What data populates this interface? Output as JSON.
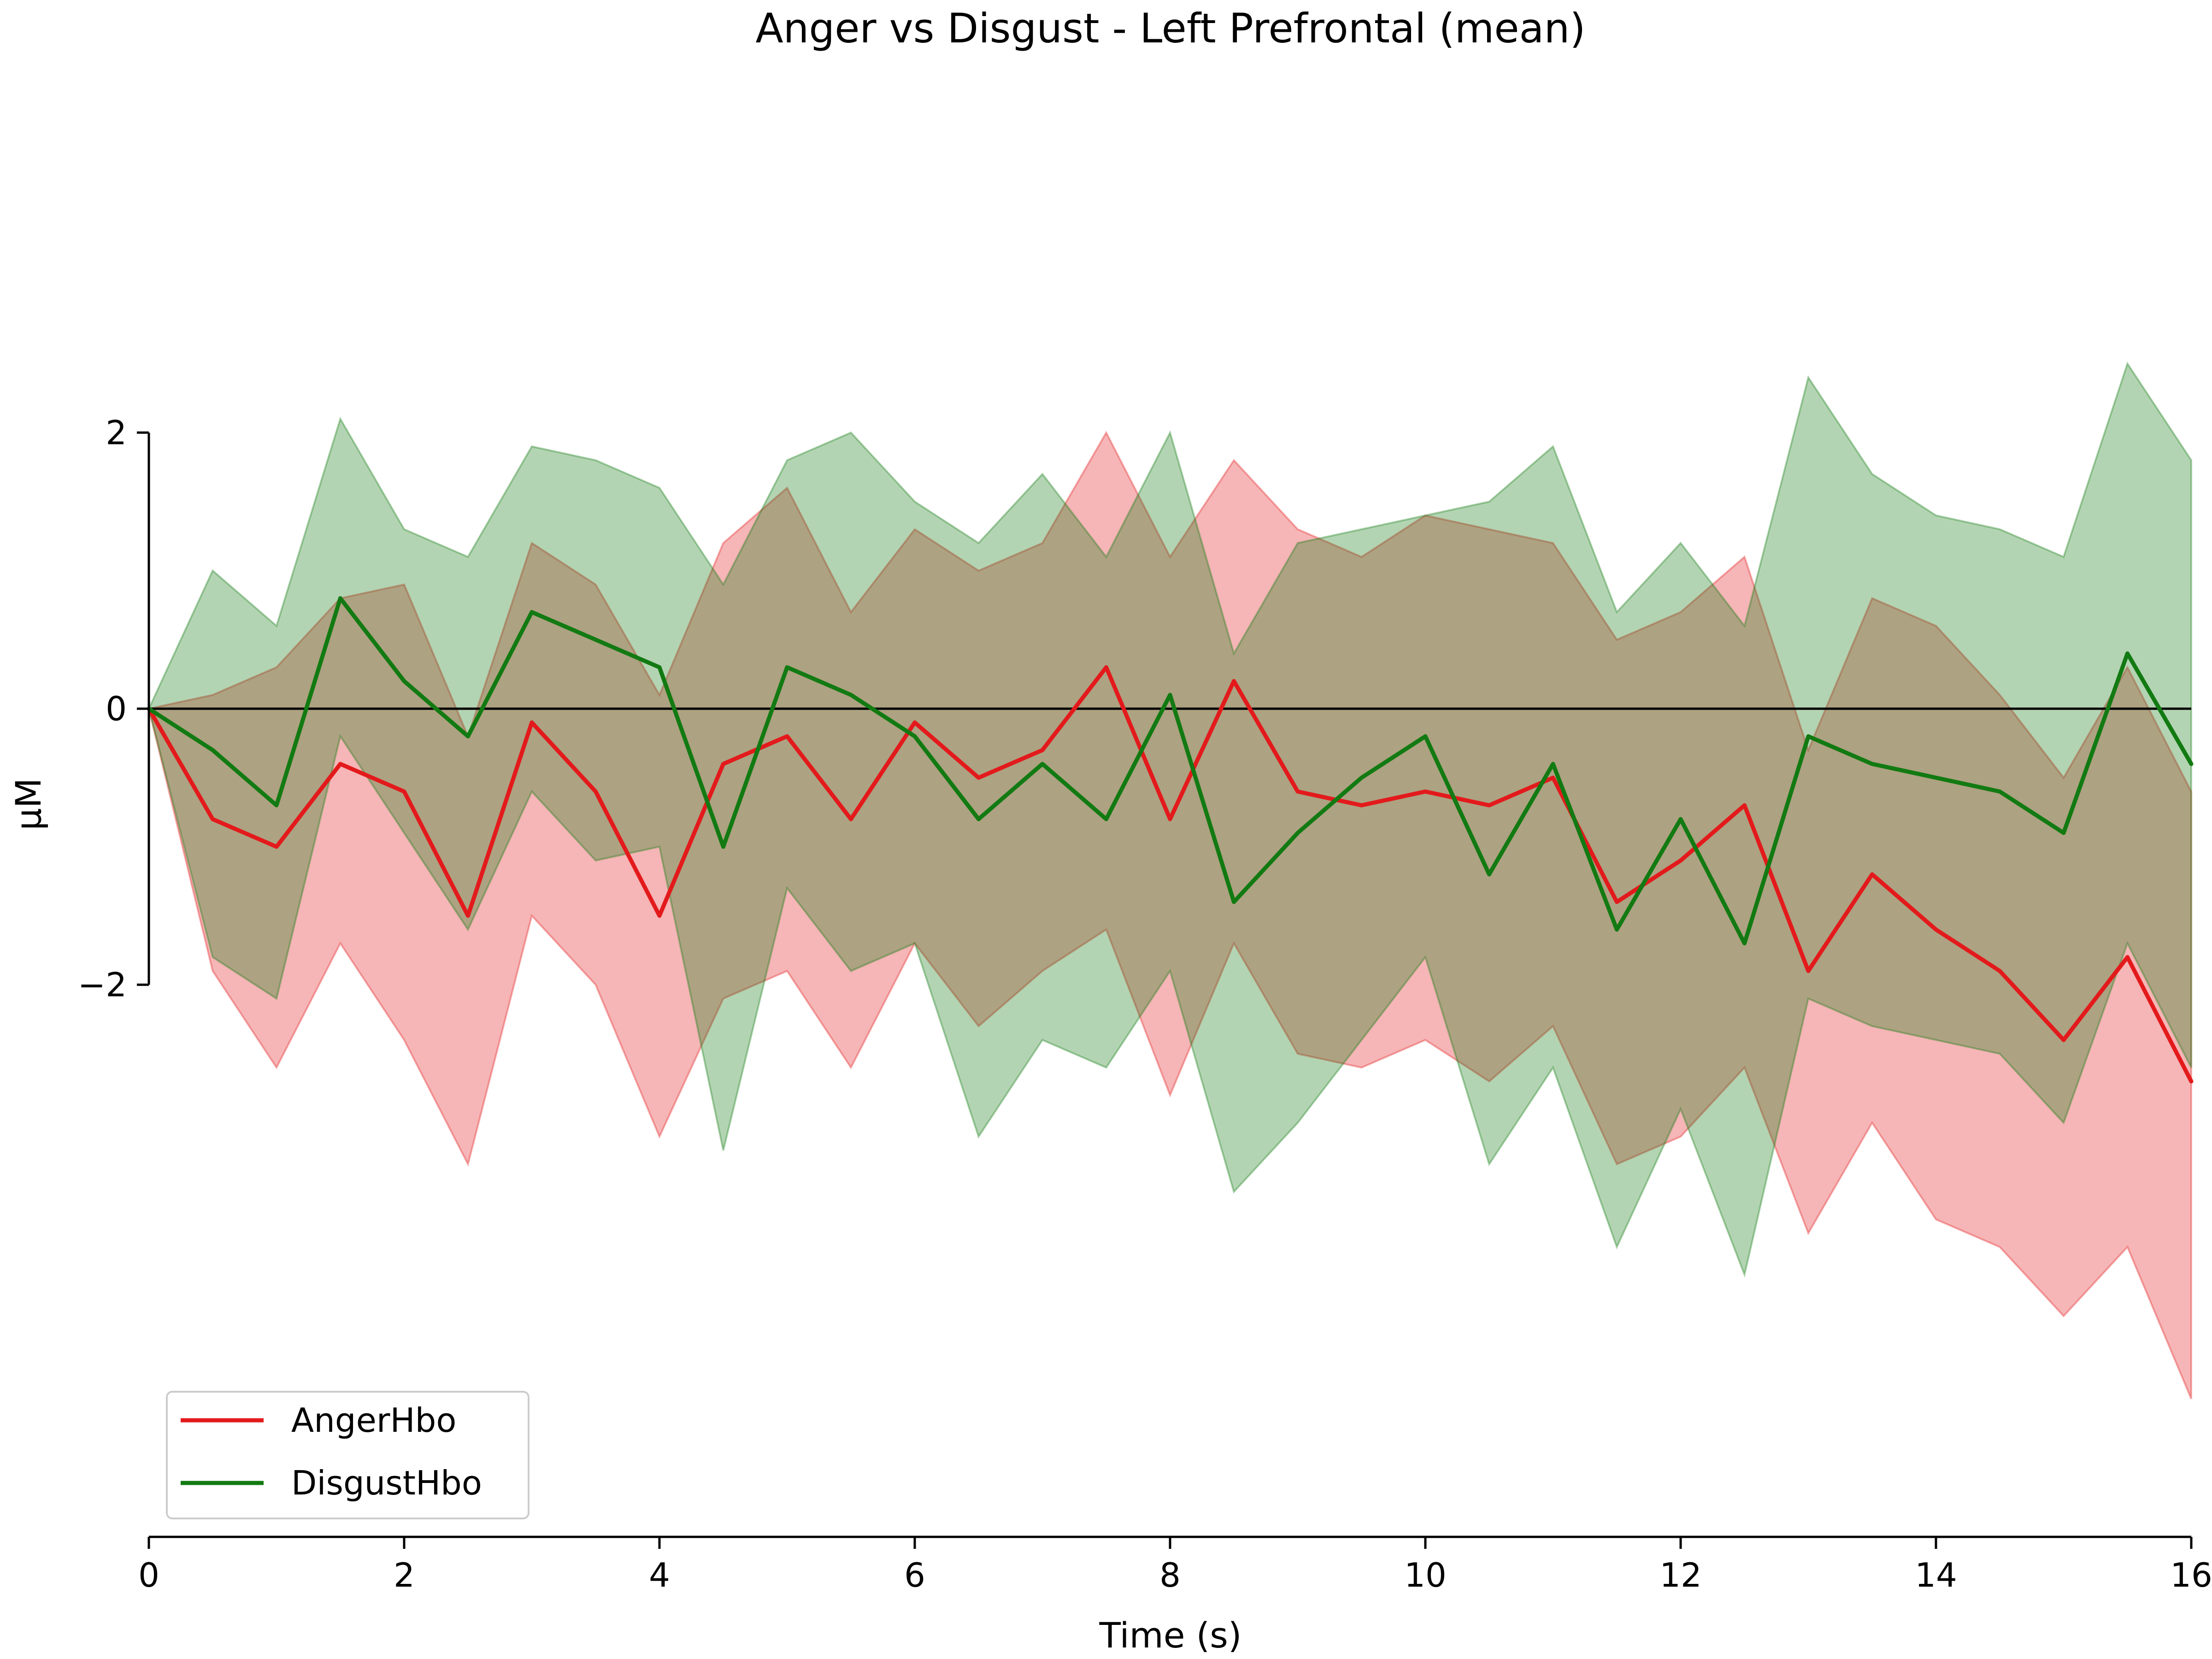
{
  "chart_data": {
    "type": "line",
    "title": "Anger vs Disgust - Left Prefrontal (mean)",
    "xlabel": "Time (s)",
    "ylabel": "µM",
    "xlim": [
      0,
      16
    ],
    "ylim": [
      -6,
      4.5
    ],
    "x_ticks": [
      {
        "value": 0,
        "label": "0"
      },
      {
        "value": 2,
        "label": "2"
      },
      {
        "value": 4,
        "label": "4"
      },
      {
        "value": 6,
        "label": "6"
      },
      {
        "value": 8,
        "label": "8"
      },
      {
        "value": 10,
        "label": "10"
      },
      {
        "value": 12,
        "label": "12"
      },
      {
        "value": 14,
        "label": "14"
      },
      {
        "value": 16,
        "label": "16"
      }
    ],
    "y_ticks": [
      {
        "value": -2,
        "label": "−2"
      },
      {
        "value": 0,
        "label": "0"
      },
      {
        "value": 2,
        "label": "2"
      }
    ],
    "zero_line": true,
    "grid": false,
    "legend_position": "lower-left",
    "x": [
      0,
      0.5,
      1,
      1.5,
      2,
      2.5,
      3,
      3.5,
      4,
      4.5,
      5,
      5.5,
      6,
      6.5,
      7,
      7.5,
      8,
      8.5,
      9,
      9.5,
      10,
      10.5,
      11,
      11.5,
      12,
      12.5,
      13,
      13.5,
      14,
      14.5,
      15,
      15.5,
      16
    ],
    "series": [
      {
        "name": "AngerHbo",
        "color": "#e31a1c",
        "values": [
          0,
          -0.8,
          -1.0,
          -0.4,
          -0.6,
          -1.5,
          -0.1,
          -0.6,
          -1.5,
          -0.4,
          -0.2,
          -0.8,
          -0.1,
          -0.5,
          -0.3,
          0.3,
          -0.8,
          0.2,
          -0.6,
          -0.7,
          -0.6,
          -0.7,
          -0.5,
          -1.4,
          -1.1,
          -0.7,
          -1.9,
          -1.2,
          -1.6,
          -1.9,
          -2.4,
          -1.8,
          -2.7
        ],
        "upper": [
          0,
          0.1,
          0.3,
          0.8,
          0.9,
          -0.2,
          1.2,
          0.9,
          0.1,
          1.2,
          1.6,
          0.7,
          1.3,
          1.0,
          1.2,
          2.0,
          1.1,
          1.8,
          1.3,
          1.1,
          1.4,
          1.3,
          1.2,
          0.5,
          0.7,
          1.1,
          -0.3,
          0.8,
          0.6,
          0.1,
          -0.5,
          0.3,
          -0.6
        ],
        "lower": [
          0,
          -1.9,
          -2.6,
          -1.7,
          -2.4,
          -3.3,
          -1.5,
          -2.0,
          -3.1,
          -2.1,
          -1.9,
          -2.6,
          -1.7,
          -2.3,
          -1.9,
          -1.6,
          -2.8,
          -1.7,
          -2.5,
          -2.6,
          -2.4,
          -2.7,
          -2.3,
          -3.3,
          -3.1,
          -2.6,
          -3.8,
          -3.0,
          -3.7,
          -3.9,
          -4.4,
          -3.9,
          -5.0
        ]
      },
      {
        "name": "DisgustHbo",
        "color": "#127a12",
        "values": [
          0,
          -0.3,
          -0.7,
          0.8,
          0.2,
          -0.2,
          0.7,
          0.5,
          0.3,
          -1.0,
          0.3,
          0.1,
          -0.2,
          -0.8,
          -0.4,
          -0.8,
          0.1,
          -1.4,
          -0.9,
          -0.5,
          -0.2,
          -1.2,
          -0.4,
          -1.6,
          -0.8,
          -1.7,
          -0.2,
          -0.4,
          -0.5,
          -0.6,
          -0.9,
          0.4,
          -0.4
        ],
        "upper": [
          0,
          1.0,
          0.6,
          2.1,
          1.3,
          1.1,
          1.9,
          1.8,
          1.6,
          0.9,
          1.8,
          2.0,
          1.5,
          1.2,
          1.7,
          1.1,
          2.0,
          0.4,
          1.2,
          1.3,
          1.4,
          1.5,
          1.9,
          0.7,
          1.2,
          0.6,
          2.4,
          1.7,
          1.4,
          1.3,
          1.1,
          2.5,
          1.8
        ],
        "lower": [
          0,
          -1.8,
          -2.1,
          -0.2,
          -0.9,
          -1.6,
          -0.6,
          -1.1,
          -1.0,
          -3.2,
          -1.3,
          -1.9,
          -1.7,
          -3.1,
          -2.4,
          -2.6,
          -1.9,
          -3.5,
          -3.0,
          -2.4,
          -1.8,
          -3.3,
          -2.6,
          -3.9,
          -2.9,
          -4.1,
          -2.1,
          -2.3,
          -2.4,
          -2.5,
          -3.0,
          -1.7,
          -2.6
        ]
      }
    ]
  }
}
